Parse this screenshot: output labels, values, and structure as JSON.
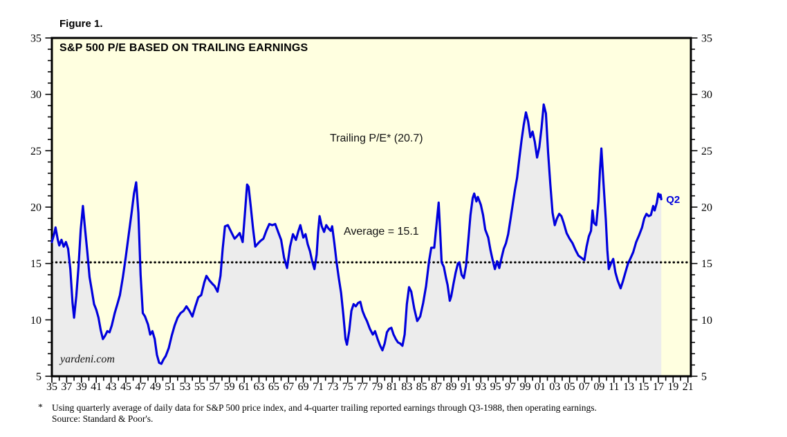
{
  "figure": {
    "label": "Figure 1."
  },
  "chart": {
    "title": "S&P 500 P/E BASED ON TRAILING EARNINGS",
    "annotations": {
      "trailing_pe": "Trailing P/E* (20.7)",
      "average": "Average = 15.1",
      "latest_quarter": "Q2"
    },
    "watermark": "yardeni.com"
  },
  "footnote": {
    "marker": "*",
    "line1": "Using quarterly average of daily data for S&P 500 price index, and 4-quarter trailing reported earnings through Q3-1988, then operating earnings.",
    "line2": "Source: Standard & Poor's."
  },
  "chart_data": {
    "type": "area",
    "title": "S&P 500 P/E BASED ON TRAILING EARNINGS",
    "series_name": "Trailing P/E",
    "latest_label": "Q2",
    "latest_value": 20.7,
    "average_value": 15.1,
    "x_range": [
      1935,
      2021.4
    ],
    "y_range": [
      5,
      35
    ],
    "grid": false,
    "legend_position": "none",
    "y_ticks": [
      5,
      10,
      15,
      20,
      25,
      30,
      35
    ],
    "y_minor_step": 1,
    "x_tick_start": 1935,
    "x_tick_step": 2,
    "x_minor_step": 1,
    "x_tick_labels": [
      "35",
      "37",
      "39",
      "41",
      "43",
      "45",
      "47",
      "49",
      "51",
      "53",
      "55",
      "57",
      "59",
      "61",
      "63",
      "65",
      "67",
      "69",
      "71",
      "73",
      "75",
      "77",
      "79",
      "81",
      "83",
      "85",
      "87",
      "89",
      "91",
      "93",
      "95",
      "97",
      "99",
      "01",
      "03",
      "05",
      "07",
      "09",
      "11",
      "13",
      "15",
      "17",
      "19",
      "21"
    ],
    "colors": {
      "background": "#ffffe0",
      "fill": "#ececec",
      "line": "#0000dd",
      "average_line": "#000000",
      "border": "#000000",
      "annotation_blue": "#0000dd"
    },
    "points": [
      [
        1935.0,
        16.9
      ],
      [
        1935.3,
        17.6
      ],
      [
        1935.5,
        18.2
      ],
      [
        1935.8,
        17.1
      ],
      [
        1936.0,
        16.6
      ],
      [
        1936.3,
        17.1
      ],
      [
        1936.6,
        16.5
      ],
      [
        1936.9,
        16.9
      ],
      [
        1937.2,
        16.3
      ],
      [
        1937.5,
        14.5
      ],
      [
        1937.8,
        11.5
      ],
      [
        1938.0,
        10.2
      ],
      [
        1938.3,
        12.1
      ],
      [
        1938.6,
        14.7
      ],
      [
        1938.9,
        18.0
      ],
      [
        1939.2,
        20.1
      ],
      [
        1939.5,
        18.0
      ],
      [
        1939.8,
        16.0
      ],
      [
        1940.1,
        13.8
      ],
      [
        1940.4,
        12.6
      ],
      [
        1940.7,
        11.4
      ],
      [
        1941.0,
        10.9
      ],
      [
        1941.3,
        10.2
      ],
      [
        1941.6,
        9.1
      ],
      [
        1941.9,
        8.3
      ],
      [
        1942.2,
        8.6
      ],
      [
        1942.5,
        9.0
      ],
      [
        1942.8,
        8.9
      ],
      [
        1943.1,
        9.5
      ],
      [
        1943.5,
        10.6
      ],
      [
        1943.9,
        11.5
      ],
      [
        1944.2,
        12.2
      ],
      [
        1944.6,
        13.8
      ],
      [
        1945.0,
        15.6
      ],
      [
        1945.4,
        17.6
      ],
      [
        1945.8,
        19.6
      ],
      [
        1946.1,
        21.2
      ],
      [
        1946.4,
        22.2
      ],
      [
        1946.7,
        19.5
      ],
      [
        1947.0,
        14.0
      ],
      [
        1947.3,
        10.6
      ],
      [
        1947.6,
        10.3
      ],
      [
        1948.0,
        9.6
      ],
      [
        1948.3,
        8.7
      ],
      [
        1948.6,
        9.0
      ],
      [
        1948.9,
        8.3
      ],
      [
        1949.2,
        6.9
      ],
      [
        1949.5,
        6.2
      ],
      [
        1949.8,
        6.1
      ],
      [
        1950.1,
        6.5
      ],
      [
        1950.4,
        6.8
      ],
      [
        1950.8,
        7.5
      ],
      [
        1951.2,
        8.6
      ],
      [
        1951.6,
        9.5
      ],
      [
        1952.0,
        10.2
      ],
      [
        1952.4,
        10.6
      ],
      [
        1952.8,
        10.8
      ],
      [
        1953.2,
        11.2
      ],
      [
        1953.6,
        10.8
      ],
      [
        1954.0,
        10.3
      ],
      [
        1954.4,
        11.2
      ],
      [
        1954.8,
        12.0
      ],
      [
        1955.2,
        12.2
      ],
      [
        1955.6,
        13.3
      ],
      [
        1955.9,
        13.9
      ],
      [
        1956.3,
        13.5
      ],
      [
        1956.7,
        13.2
      ],
      [
        1957.0,
        13.0
      ],
      [
        1957.4,
        12.5
      ],
      [
        1957.8,
        13.9
      ],
      [
        1958.1,
        16.3
      ],
      [
        1958.4,
        18.3
      ],
      [
        1958.8,
        18.4
      ],
      [
        1959.1,
        18.0
      ],
      [
        1959.4,
        17.6
      ],
      [
        1959.7,
        17.2
      ],
      [
        1960.0,
        17.4
      ],
      [
        1960.4,
        17.7
      ],
      [
        1960.8,
        16.9
      ],
      [
        1961.1,
        19.4
      ],
      [
        1961.4,
        22.0
      ],
      [
        1961.6,
        21.8
      ],
      [
        1961.9,
        20.0
      ],
      [
        1962.2,
        18.1
      ],
      [
        1962.5,
        16.5
      ],
      [
        1962.9,
        16.8
      ],
      [
        1963.2,
        17.0
      ],
      [
        1963.6,
        17.2
      ],
      [
        1964.0,
        17.9
      ],
      [
        1964.4,
        18.5
      ],
      [
        1964.8,
        18.4
      ],
      [
        1965.2,
        18.5
      ],
      [
        1965.6,
        17.8
      ],
      [
        1966.0,
        17.1
      ],
      [
        1966.4,
        15.5
      ],
      [
        1966.8,
        14.6
      ],
      [
        1967.2,
        16.5
      ],
      [
        1967.6,
        17.6
      ],
      [
        1968.0,
        17.1
      ],
      [
        1968.3,
        17.8
      ],
      [
        1968.6,
        18.4
      ],
      [
        1969.0,
        17.3
      ],
      [
        1969.3,
        17.6
      ],
      [
        1969.6,
        16.7
      ],
      [
        1969.9,
        16.1
      ],
      [
        1970.2,
        15.2
      ],
      [
        1970.5,
        14.5
      ],
      [
        1970.8,
        15.8
      ],
      [
        1971.0,
        17.8
      ],
      [
        1971.2,
        19.2
      ],
      [
        1971.5,
        18.3
      ],
      [
        1971.8,
        17.8
      ],
      [
        1972.1,
        18.4
      ],
      [
        1972.4,
        18.1
      ],
      [
        1972.7,
        17.9
      ],
      [
        1972.9,
        18.3
      ],
      [
        1973.2,
        16.8
      ],
      [
        1973.5,
        15.1
      ],
      [
        1973.8,
        13.7
      ],
      [
        1974.1,
        12.4
      ],
      [
        1974.4,
        10.5
      ],
      [
        1974.7,
        8.3
      ],
      [
        1974.9,
        7.8
      ],
      [
        1975.2,
        9.0
      ],
      [
        1975.5,
        10.8
      ],
      [
        1975.8,
        11.4
      ],
      [
        1976.1,
        11.2
      ],
      [
        1976.4,
        11.5
      ],
      [
        1976.7,
        11.6
      ],
      [
        1977.0,
        10.8
      ],
      [
        1977.3,
        10.3
      ],
      [
        1977.6,
        9.9
      ],
      [
        1978.0,
        9.2
      ],
      [
        1978.4,
        8.7
      ],
      [
        1978.7,
        9.0
      ],
      [
        1979.1,
        8.2
      ],
      [
        1979.4,
        7.7
      ],
      [
        1979.7,
        7.3
      ],
      [
        1980.0,
        7.9
      ],
      [
        1980.3,
        8.9
      ],
      [
        1980.6,
        9.2
      ],
      [
        1980.9,
        9.3
      ],
      [
        1981.2,
        8.7
      ],
      [
        1981.5,
        8.3
      ],
      [
        1981.8,
        8.0
      ],
      [
        1982.1,
        7.9
      ],
      [
        1982.4,
        7.7
      ],
      [
        1982.7,
        8.7
      ],
      [
        1983.0,
        11.4
      ],
      [
        1983.3,
        12.9
      ],
      [
        1983.6,
        12.5
      ],
      [
        1984.0,
        11.0
      ],
      [
        1984.4,
        9.9
      ],
      [
        1984.8,
        10.3
      ],
      [
        1985.2,
        11.5
      ],
      [
        1985.6,
        13.0
      ],
      [
        1986.0,
        15.2
      ],
      [
        1986.3,
        16.4
      ],
      [
        1986.7,
        16.4
      ],
      [
        1987.0,
        18.4
      ],
      [
        1987.3,
        20.4
      ],
      [
        1987.5,
        17.8
      ],
      [
        1987.7,
        15.1
      ],
      [
        1988.0,
        14.7
      ],
      [
        1988.3,
        13.7
      ],
      [
        1988.5,
        13.1
      ],
      [
        1988.8,
        11.7
      ],
      [
        1989.0,
        12.1
      ],
      [
        1989.3,
        13.2
      ],
      [
        1989.6,
        14.2
      ],
      [
        1989.9,
        15.0
      ],
      [
        1990.1,
        15.1
      ],
      [
        1990.4,
        14.0
      ],
      [
        1990.7,
        13.7
      ],
      [
        1991.0,
        14.8
      ],
      [
        1991.3,
        17.0
      ],
      [
        1991.6,
        19.3
      ],
      [
        1991.9,
        20.8
      ],
      [
        1992.1,
        21.2
      ],
      [
        1992.4,
        20.5
      ],
      [
        1992.6,
        20.9
      ],
      [
        1993.0,
        20.2
      ],
      [
        1993.3,
        19.3
      ],
      [
        1993.6,
        18.0
      ],
      [
        1994.0,
        17.3
      ],
      [
        1994.3,
        16.2
      ],
      [
        1994.6,
        15.3
      ],
      [
        1994.9,
        14.5
      ],
      [
        1995.2,
        15.2
      ],
      [
        1995.5,
        14.6
      ],
      [
        1995.8,
        15.5
      ],
      [
        1996.1,
        16.3
      ],
      [
        1996.4,
        16.8
      ],
      [
        1996.7,
        17.6
      ],
      [
        1997.0,
        18.9
      ],
      [
        1997.3,
        20.2
      ],
      [
        1997.6,
        21.5
      ],
      [
        1997.9,
        22.6
      ],
      [
        1998.2,
        24.3
      ],
      [
        1998.5,
        25.9
      ],
      [
        1998.8,
        27.3
      ],
      [
        1999.1,
        28.4
      ],
      [
        1999.4,
        27.6
      ],
      [
        1999.7,
        26.2
      ],
      [
        2000.0,
        26.7
      ],
      [
        2000.3,
        25.8
      ],
      [
        2000.6,
        24.4
      ],
      [
        2000.9,
        25.3
      ],
      [
        2001.2,
        27.0
      ],
      [
        2001.5,
        29.1
      ],
      [
        2001.8,
        28.3
      ],
      [
        2002.1,
        24.8
      ],
      [
        2002.4,
        22.0
      ],
      [
        2002.7,
        19.5
      ],
      [
        2003.0,
        18.4
      ],
      [
        2003.3,
        19.0
      ],
      [
        2003.6,
        19.4
      ],
      [
        2003.9,
        19.2
      ],
      [
        2004.2,
        18.6
      ],
      [
        2004.6,
        17.7
      ],
      [
        2005.0,
        17.2
      ],
      [
        2005.4,
        16.8
      ],
      [
        2005.8,
        16.2
      ],
      [
        2006.2,
        15.7
      ],
      [
        2006.6,
        15.5
      ],
      [
        2007.0,
        15.3
      ],
      [
        2007.3,
        16.5
      ],
      [
        2007.6,
        17.4
      ],
      [
        2007.9,
        17.9
      ],
      [
        2008.1,
        19.7
      ],
      [
        2008.3,
        18.6
      ],
      [
        2008.6,
        18.4
      ],
      [
        2008.9,
        20.5
      ],
      [
        2009.1,
        23.2
      ],
      [
        2009.3,
        25.2
      ],
      [
        2009.6,
        22.0
      ],
      [
        2009.9,
        18.9
      ],
      [
        2010.1,
        16.2
      ],
      [
        2010.3,
        14.5
      ],
      [
        2010.6,
        15.0
      ],
      [
        2010.9,
        15.4
      ],
      [
        2011.2,
        14.2
      ],
      [
        2011.5,
        13.5
      ],
      [
        2011.9,
        12.8
      ],
      [
        2012.2,
        13.4
      ],
      [
        2012.5,
        14.1
      ],
      [
        2012.9,
        15.0
      ],
      [
        2013.2,
        15.4
      ],
      [
        2013.6,
        16.0
      ],
      [
        2014.0,
        16.9
      ],
      [
        2014.4,
        17.5
      ],
      [
        2014.8,
        18.2
      ],
      [
        2015.1,
        19.0
      ],
      [
        2015.4,
        19.4
      ],
      [
        2015.7,
        19.2
      ],
      [
        2016.0,
        19.3
      ],
      [
        2016.3,
        20.1
      ],
      [
        2016.5,
        19.7
      ],
      [
        2016.8,
        20.4
      ],
      [
        2017.0,
        21.2
      ],
      [
        2017.2,
        20.9
      ],
      [
        2017.3,
        21.1
      ],
      [
        2017.4,
        20.7
      ]
    ]
  }
}
